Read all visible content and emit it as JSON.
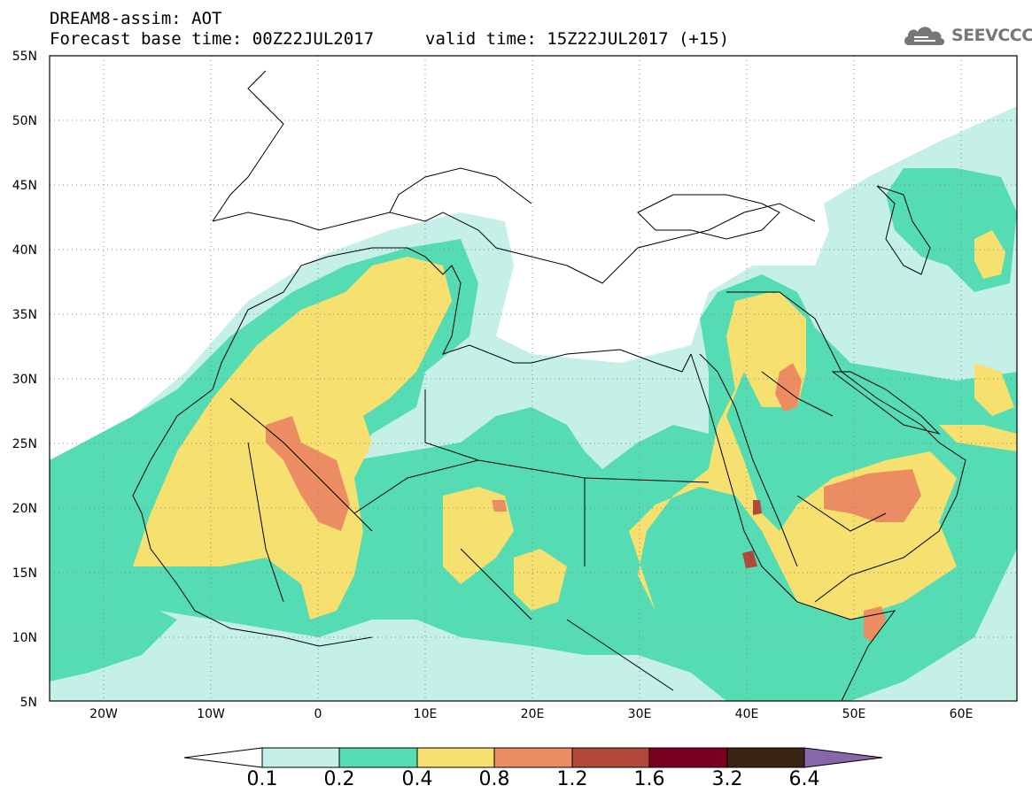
{
  "title": {
    "line1": "DREAM8-assim: AOT",
    "line2": "Forecast base time: 00Z22JUL2017",
    "line3": "valid time: 15Z22JUL2017 (+15)"
  },
  "logo": {
    "text": "SEEVCCC",
    "icon": "cloud-icon",
    "color": "#777777"
  },
  "map": {
    "lon_range": [
      -25,
      65
    ],
    "lat_range": [
      5,
      55
    ],
    "y_ticks": [
      "55N",
      "50N",
      "45N",
      "40N",
      "35N",
      "30N",
      "25N",
      "20N",
      "15N",
      "10N",
      "5N"
    ],
    "x_ticks": [
      "20W",
      "10W",
      "0",
      "10E",
      "20E",
      "30E",
      "40E",
      "50E",
      "60E"
    ]
  },
  "colorbar": {
    "labels": [
      "0.1",
      "0.2",
      "0.4",
      "0.8",
      "1.2",
      "1.6",
      "3.2",
      "6.4"
    ],
    "colors": [
      "#ffffff",
      "#c4f0e8",
      "#56dcb2",
      "#f6e070",
      "#eb8c62",
      "#b2483a",
      "#7a0020",
      "#3a2414",
      "#8866aa"
    ]
  }
}
